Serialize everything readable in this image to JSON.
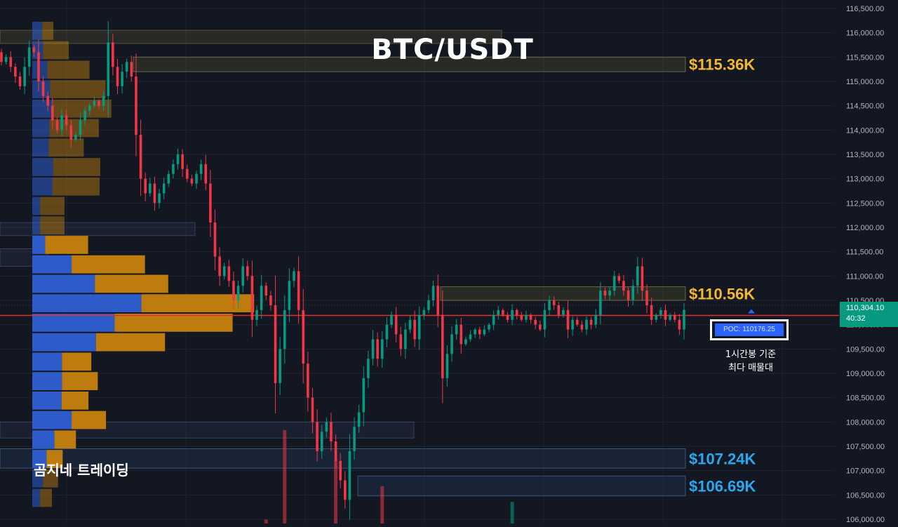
{
  "title": "BTC/USDT",
  "brand": "곰지네 트레이딩",
  "poc_label": "POC: 110176.25",
  "poc_note": [
    "1시간봉 기준",
    "최다 매물대"
  ],
  "current_price": "110,304.10",
  "countdown": "40:32",
  "colors": {
    "background": "#131722",
    "up": "#089981",
    "down": "#f23645",
    "level_gold": "#f5b82e",
    "level_blue": "#29a8ef",
    "vp_up": "#2f5fd4",
    "vp_down": "#c7820e"
  },
  "chart_data": {
    "type": "candlestick",
    "axis": {
      "ticks": [
        106000,
        106500,
        107000,
        107500,
        108000,
        108500,
        109000,
        109500,
        110000,
        110500,
        111000,
        111500,
        112000,
        112500,
        113000,
        113500,
        114000,
        114500,
        115000,
        115500,
        116000,
        116500
      ],
      "tick_labels": [
        "106,000.00",
        "106,500.00",
        "107,000.00",
        "107,500.00",
        "108,000.00",
        "108,500.00",
        "109,000.00",
        "109,500.00",
        "110,000.00",
        "110,500.00",
        "111,000.00",
        "111,500.00",
        "112,000.00",
        "112,500.00",
        "113,000.00",
        "113,500.00",
        "114,000.00",
        "114,500.00",
        "115,000.00",
        "115,500.00",
        "116,000.00",
        "116,500.00"
      ],
      "ylim": [
        106000,
        116500
      ],
      "position": "right"
    },
    "current_price": 110304.1,
    "poc": 110176.25,
    "levels": [
      {
        "label": "$115.36K",
        "low": 115200,
        "high": 115500,
        "color": "gold"
      },
      {
        "label": "$110.56K",
        "low": 110500,
        "high": 110780,
        "color": "gold"
      },
      {
        "label": "$107.24K",
        "low": 107050,
        "high": 107450,
        "color": "blue"
      },
      {
        "label": "$106.69K",
        "low": 106480,
        "high": 106890,
        "color": "blue"
      }
    ],
    "closes": [
      115400,
      115500,
      115300,
      115100,
      114900,
      115300,
      115700,
      115600,
      115000,
      114700,
      114500,
      114200,
      114000,
      114300,
      114100,
      113800,
      113900,
      114200,
      114400,
      114500,
      114600,
      114500,
      114700,
      115800,
      115300,
      114900,
      115200,
      115400,
      115100,
      113900,
      113000,
      112700,
      112900,
      112500,
      112700,
      112900,
      113100,
      113300,
      113500,
      113200,
      113000,
      112900,
      113100,
      113300,
      112900,
      112100,
      111400,
      111000,
      111200,
      110900,
      110500,
      110800,
      111200,
      111000,
      110100,
      110300,
      110800,
      110600,
      110400,
      108800,
      109500,
      110300,
      110900,
      111100,
      110300,
      109200,
      108500,
      108000,
      107400,
      107800,
      108000,
      107600,
      107200,
      106800,
      106400,
      107400,
      107900,
      108200,
      108900,
      109300,
      109700,
      109300,
      109700,
      110000,
      110200,
      109800,
      109500,
      109900,
      110100,
      109700,
      110200,
      110300,
      110500,
      110800,
      110200,
      108900,
      109400,
      109800,
      110000,
      109600,
      109700,
      109800,
      109900,
      109800,
      109900,
      110000,
      110200,
      110300,
      110200,
      110100,
      110300,
      110200,
      110100,
      110200,
      110100,
      110000,
      109900,
      110300,
      110500,
      110400,
      110200,
      110300,
      109900,
      110100,
      110000,
      109900,
      110100,
      110000,
      110200,
      110700,
      110600,
      110700,
      111000,
      110900,
      110700,
      110500,
      110800,
      111200,
      110700,
      110400,
      110100,
      110200,
      110300,
      110100,
      110200,
      110100,
      109900,
      110304
    ],
    "volume_profile": [
      {
        "price": 116040,
        "up": 0.28,
        "down": 0.31
      },
      {
        "price": 115640,
        "up": 0.3,
        "down": 0.72
      },
      {
        "price": 115240,
        "up": 0.42,
        "down": 1.18
      },
      {
        "price": 114840,
        "up": 0.5,
        "down": 1.55
      },
      {
        "price": 114440,
        "up": 0.56,
        "down": 1.65
      },
      {
        "price": 114040,
        "up": 0.48,
        "down": 1.38
      },
      {
        "price": 113640,
        "up": 0.46,
        "down": 0.98
      },
      {
        "price": 113240,
        "up": 0.58,
        "down": 1.32
      },
      {
        "price": 112840,
        "up": 0.56,
        "down": 1.32
      },
      {
        "price": 112440,
        "up": 0.22,
        "down": 0.68
      },
      {
        "price": 112040,
        "up": 0.22,
        "down": 0.68
      },
      {
        "price": 111640,
        "up": 0.36,
        "down": 1.2
      },
      {
        "price": 111240,
        "up": 1.1,
        "down": 2.05
      },
      {
        "price": 110840,
        "up": 1.75,
        "down": 2.05
      },
      {
        "price": 110440,
        "up": 3.05,
        "down": 3.15
      },
      {
        "price": 110040,
        "up": 2.3,
        "down": 3.3
      },
      {
        "price": 109640,
        "up": 1.78,
        "down": 1.93
      },
      {
        "price": 109240,
        "up": 0.83,
        "down": 0.82
      },
      {
        "price": 108840,
        "up": 0.83,
        "down": 1.0
      },
      {
        "price": 108440,
        "up": 0.82,
        "down": 0.75
      },
      {
        "price": 108040,
        "up": 1.1,
        "down": 0.96
      },
      {
        "price": 107640,
        "up": 0.62,
        "down": 0.6
      },
      {
        "price": 107240,
        "up": 0.4,
        "down": 0.45
      },
      {
        "price": 106840,
        "up": 0.3,
        "down": 0.42
      },
      {
        "price": 106440,
        "up": 0.22,
        "down": 0.33
      }
    ],
    "volume_bars": [
      {
        "index": 61,
        "value": 0.95,
        "dir": "down"
      },
      {
        "index": 72,
        "value": 0.65,
        "dir": "down"
      },
      {
        "index": 82,
        "value": 0.38,
        "dir": "down"
      },
      {
        "index": 110,
        "value": 0.22,
        "dir": "up"
      },
      {
        "index": 57,
        "value": 0.04,
        "dir": "down"
      }
    ]
  }
}
